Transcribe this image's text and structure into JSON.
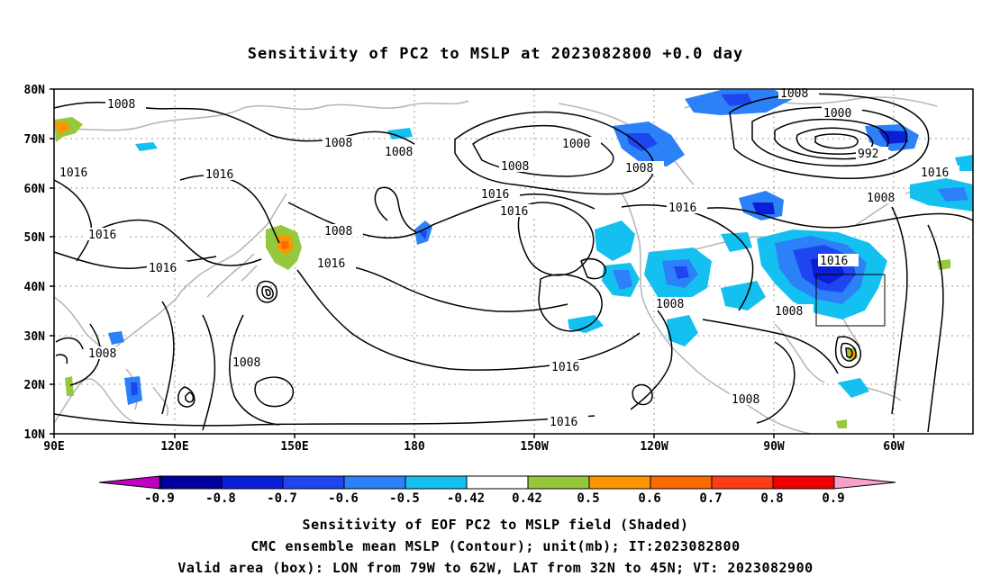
{
  "title": "Sensitivity of PC2 to MSLP at 2023082800 +0.0 day",
  "lat_ticks": [
    "80N",
    "70N",
    "60N",
    "50N",
    "40N",
    "30N",
    "20N",
    "10N"
  ],
  "lon_ticks": [
    "90E",
    "120E",
    "150E",
    "180",
    "150W",
    "120W",
    "90W",
    "60W"
  ],
  "contour_labels": [
    "1008",
    "1008",
    "1008",
    "1008",
    "1000",
    "1000",
    "992",
    "1016",
    "1016",
    "1016",
    "1016",
    "1016",
    "1016",
    "1016",
    "1008",
    "1008",
    "1016",
    "1016",
    "1008",
    "1008",
    "1016",
    "1008",
    "1008",
    "1016",
    "1008",
    "1008"
  ],
  "colorbar": {
    "labels": [
      "-0.9",
      "-0.8",
      "-0.7",
      "-0.6",
      "-0.5",
      "-0.42",
      "0.42",
      "0.5",
      "0.6",
      "0.7",
      "0.8",
      "0.9"
    ],
    "colors": [
      "#c000c0",
      "#0000a0",
      "#0a1ed8",
      "#1e46f0",
      "#2c80f8",
      "#14c0f0",
      "#ffffff",
      "#96c83c",
      "#ff9600",
      "#ff6a00",
      "#ff3c14",
      "#f00000",
      "#f8a0c8"
    ]
  },
  "captions": [
    "Sensitivity of EOF PC2 to MSLP field (Shaded)",
    "CMC ensemble mean MSLP (Contour); unit(mb); IT:2023082800",
    "Valid area (box): LON from 79W to 62W, LAT from 32N to 45N; VT: 2023082900"
  ]
}
